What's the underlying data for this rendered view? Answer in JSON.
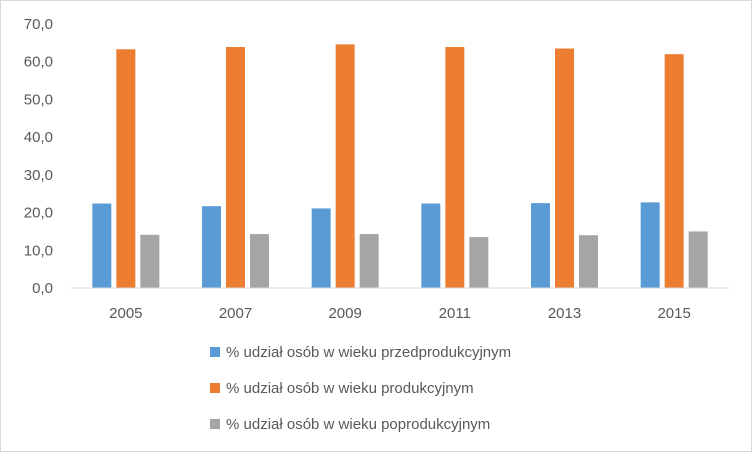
{
  "chart_data": {
    "type": "bar",
    "title": "",
    "xlabel": "",
    "ylabel": "",
    "categories": [
      "2005",
      "2007",
      "2009",
      "2011",
      "2013",
      "2015"
    ],
    "ylim": [
      0,
      70
    ],
    "yticks": [
      "0,0",
      "10,0",
      "20,0",
      "30,0",
      "40,0",
      "50,0",
      "60,0",
      "70,0"
    ],
    "grid": false,
    "legend_position": "bottom",
    "series": [
      {
        "name": "% udział osób w wieku przedprodukcyjnym",
        "color": "#5b9bd5",
        "values": [
          22.4,
          21.7,
          21.1,
          22.4,
          22.5,
          22.7
        ]
      },
      {
        "name": "% udział osób w wieku produkcyjnym",
        "color": "#ed7d31",
        "values": [
          63.3,
          63.9,
          64.6,
          63.9,
          63.5,
          62.0
        ]
      },
      {
        "name": "% udział osób w wieku poprodukcyjnym",
        "color": "#a5a5a5",
        "values": [
          14.1,
          14.3,
          14.3,
          13.5,
          14.0,
          15.0
        ]
      }
    ]
  }
}
